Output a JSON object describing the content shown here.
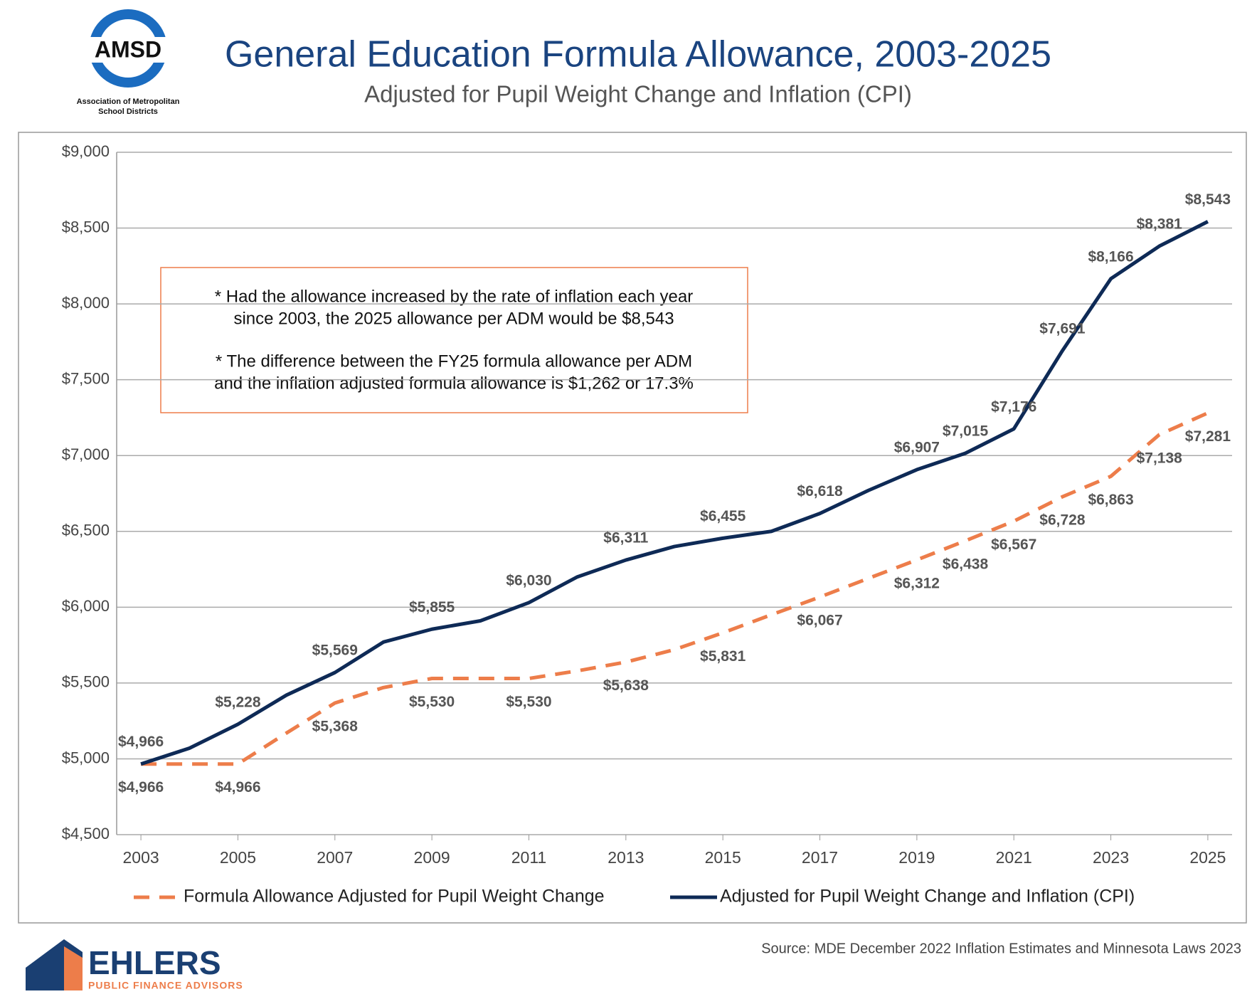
{
  "logo_top": {
    "name": "AMSD",
    "subtitle_lines": [
      "Association of Metropolitan",
      "School Districts"
    ]
  },
  "logo_bottom": {
    "name": "EHLERS",
    "tagline": "PUBLIC FINANCE ADVISORS"
  },
  "chart_data": {
    "type": "line",
    "title": "General Education Formula Allowance, 2003-2025",
    "subtitle": "Adjusted for Pupil Weight Change and Inflation (CPI)",
    "source": "Source: MDE December 2022 Inflation Estimates and Minnesota Laws 2023",
    "annotation": [
      "* Had the allowance increased by the rate of inflation each year",
      "since 2003, the 2025 allowance per ADM would be $8,543",
      "* The difference between the FY25 formula allowance per ADM",
      "and the inflation adjusted formula allowance is $1,262 or 17.3%"
    ],
    "x": [
      2003,
      2004,
      2005,
      2006,
      2007,
      2008,
      2009,
      2010,
      2011,
      2012,
      2013,
      2014,
      2015,
      2016,
      2017,
      2018,
      2019,
      2020,
      2021,
      2022,
      2023,
      2024,
      2025
    ],
    "xlim": [
      2002.5,
      2025.5
    ],
    "xticks": [
      2003,
      2005,
      2007,
      2009,
      2011,
      2013,
      2015,
      2017,
      2019,
      2021,
      2023,
      2025
    ],
    "ylim": [
      4500,
      9000
    ],
    "yticks": [
      {
        "value": 4500,
        "label": "$4,500"
      },
      {
        "value": 5000,
        "label": "$5,000"
      },
      {
        "value": 5500,
        "label": "$5,500"
      },
      {
        "value": 6000,
        "label": "$6,000"
      },
      {
        "value": 6500,
        "label": "$6,500"
      },
      {
        "value": 7000,
        "label": "$7,000"
      },
      {
        "value": 7500,
        "label": "$7,500"
      },
      {
        "value": 8000,
        "label": "$8,000"
      },
      {
        "value": 8500,
        "label": "$8,500"
      },
      {
        "value": 9000,
        "label": "$9,000"
      }
    ],
    "grid": true,
    "legend": "bottom",
    "series": [
      {
        "name": "Formula Allowance Adjusted for Pupil Weight Change",
        "color": "#ed7d4a",
        "dashed": true,
        "values": [
          4966,
          4966,
          4966,
          5170,
          5368,
          5470,
          5530,
          5530,
          5530,
          5580,
          5638,
          5720,
          5831,
          5950,
          6067,
          6190,
          6312,
          6438,
          6567,
          6728,
          6863,
          7138,
          7281
        ],
        "value_labels": [
          "$4,966",
          null,
          "$4,966",
          null,
          "$5,368",
          null,
          "$5,530",
          null,
          "$5,530",
          null,
          "$5,638",
          null,
          "$5,831",
          null,
          "$6,067",
          null,
          "$6,312",
          "$6,438",
          "$6,567",
          "$6,728",
          "$6,863",
          "$7,138",
          "$7,281"
        ]
      },
      {
        "name": "Adjusted for Pupil Weight Change and Inflation (CPI)",
        "color": "#0e2a56",
        "dashed": false,
        "values": [
          4966,
          5070,
          5228,
          5420,
          5569,
          5770,
          5855,
          5910,
          6030,
          6200,
          6311,
          6400,
          6455,
          6500,
          6618,
          6770,
          6907,
          7015,
          7176,
          7691,
          8166,
          8381,
          8543
        ],
        "value_labels": [
          "$4,966",
          null,
          "$5,228",
          null,
          "$5,569",
          null,
          "$5,855",
          null,
          "$6,030",
          null,
          "$6,311",
          null,
          "$6,455",
          null,
          "$6,618",
          null,
          "$6,907",
          "$7,015",
          "$7,176",
          "$7,691",
          "$8,166",
          "$8,381",
          "$8,543"
        ]
      }
    ]
  }
}
